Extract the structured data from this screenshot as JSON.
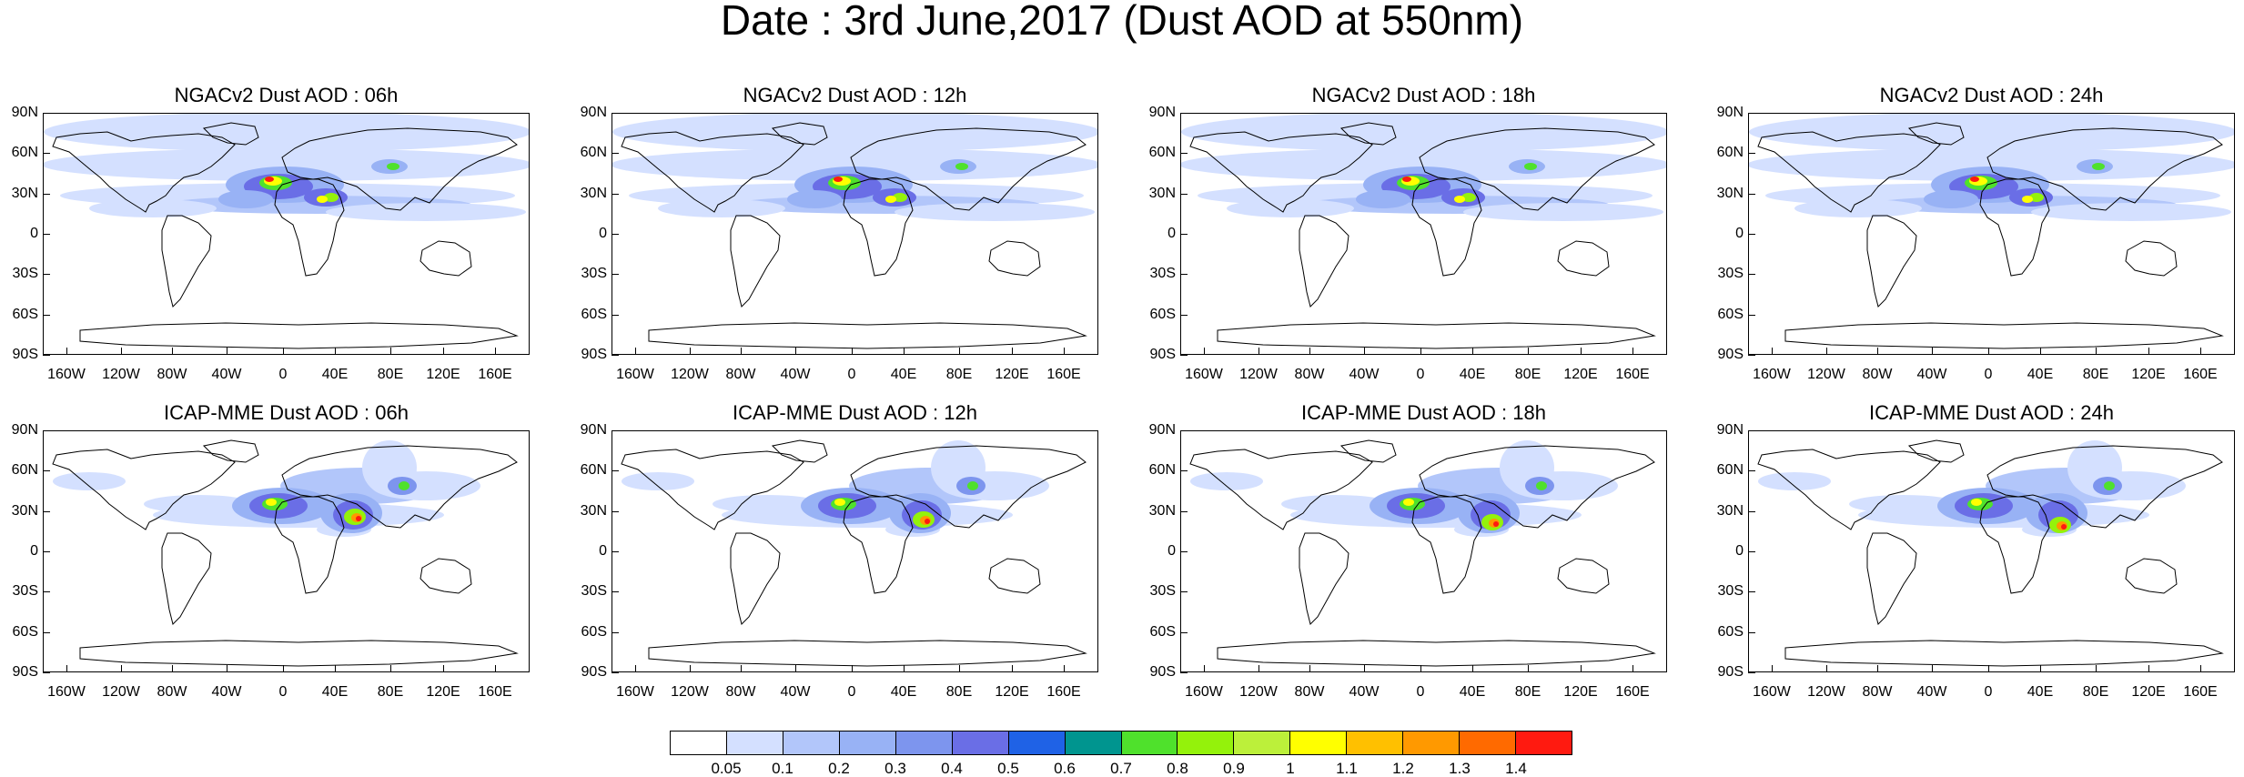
{
  "title": "Date : 3rd June,2017 (Dust AOD at 550nm)",
  "panels": [
    {
      "title": "NGACv2 Dust AOD : 06h"
    },
    {
      "title": "NGACv2 Dust AOD : 12h"
    },
    {
      "title": "NGACv2 Dust AOD : 18h"
    },
    {
      "title": "NGACv2 Dust AOD : 24h"
    },
    {
      "title": "ICAP-MME Dust AOD : 06h"
    },
    {
      "title": "ICAP-MME Dust AOD : 12h"
    },
    {
      "title": "ICAP-MME Dust AOD : 18h"
    },
    {
      "title": "ICAP-MME Dust AOD : 24h"
    }
  ],
  "lat_labels": [
    "90N",
    "60N",
    "30N",
    "0",
    "30S",
    "60S",
    "90S"
  ],
  "lon_labels": [
    "160W",
    "120W",
    "80W",
    "40W",
    "0",
    "40E",
    "80E",
    "120E",
    "160E"
  ],
  "colorbar": {
    "labels": [
      "0.05",
      "0.1",
      "0.2",
      "0.3",
      "0.4",
      "0.5",
      "0.6",
      "0.7",
      "0.8",
      "0.9",
      "1",
      "1.1",
      "1.2",
      "1.3",
      "1.4"
    ],
    "colors": [
      "#ffffff",
      "#d4e0ff",
      "#b2c6fa",
      "#98b2f5",
      "#7d95ee",
      "#6a6ee6",
      "#1f62e6",
      "#00958f",
      "#4fe12c",
      "#94f20b",
      "#bcf03a",
      "#ffff00",
      "#ffc000",
      "#ff9900",
      "#ff6a00",
      "#ff1a10"
    ]
  }
}
